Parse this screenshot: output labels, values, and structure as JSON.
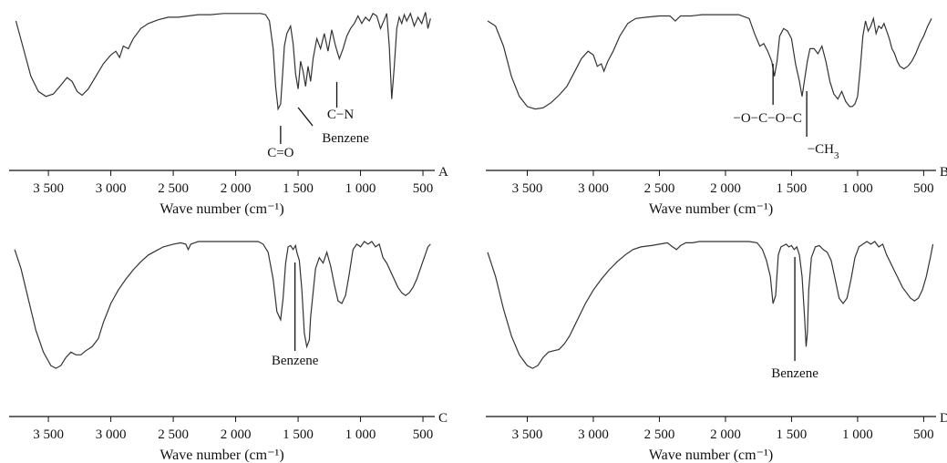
{
  "chart_data": [
    {
      "type": "line",
      "panel_label": "A",
      "xlabel": "Wave number (cm⁻¹)",
      "ylabel": "",
      "title": "",
      "xlim": [
        3800,
        420
      ],
      "x_reversed": true,
      "xticks": [
        3500,
        3000,
        2500,
        2000,
        1500,
        1000,
        500
      ],
      "xtick_labels": [
        "3 500",
        "3 000",
        "2 500",
        "2 000",
        "1 500",
        "1 000",
        "500"
      ],
      "ylim": [
        0,
        1
      ],
      "grid": false,
      "series": [
        {
          "x": [
            3760,
            3700,
            3640,
            3580,
            3520,
            3460,
            3400,
            3350,
            3310,
            3270,
            3230,
            3180,
            3120,
            3060,
            3000,
            2960,
            2930,
            2900,
            2860,
            2820,
            2760,
            2700,
            2620,
            2540,
            2460,
            2380,
            2300,
            2200,
            2100,
            2000,
            1900,
            1800,
            1760,
            1730,
            1700,
            1680,
            1660,
            1640,
            1625,
            1610,
            1590,
            1560,
            1540,
            1520,
            1500,
            1480,
            1460,
            1440,
            1420,
            1400,
            1380,
            1350,
            1320,
            1290,
            1260,
            1230,
            1200,
            1170,
            1140,
            1110,
            1080,
            1050,
            1020,
            990,
            960,
            930,
            900,
            870,
            840,
            810,
            790,
            770,
            750,
            730,
            710,
            690,
            670,
            650,
            630,
            600,
            570,
            540,
            510,
            480,
            460,
            440
          ],
          "y": [
            0.92,
            0.7,
            0.48,
            0.36,
            0.32,
            0.34,
            0.41,
            0.47,
            0.44,
            0.36,
            0.33,
            0.38,
            0.48,
            0.58,
            0.65,
            0.68,
            0.63,
            0.72,
            0.7,
            0.78,
            0.86,
            0.9,
            0.93,
            0.95,
            0.95,
            0.96,
            0.97,
            0.97,
            0.98,
            0.98,
            0.98,
            0.98,
            0.97,
            0.92,
            0.7,
            0.4,
            0.22,
            0.26,
            0.48,
            0.72,
            0.82,
            0.88,
            0.74,
            0.5,
            0.38,
            0.6,
            0.52,
            0.4,
            0.56,
            0.44,
            0.62,
            0.78,
            0.7,
            0.82,
            0.68,
            0.85,
            0.72,
            0.62,
            0.7,
            0.8,
            0.86,
            0.9,
            0.96,
            0.9,
            0.95,
            0.92,
            0.98,
            0.96,
            0.86,
            0.93,
            0.98,
            0.72,
            0.3,
            0.55,
            0.86,
            0.95,
            0.9,
            0.97,
            0.92,
            0.98,
            0.88,
            0.95,
            0.9,
            0.99,
            0.86,
            0.94
          ]
        }
      ],
      "annotations": [
        {
          "text": "C=O",
          "x": 1640
        },
        {
          "text": "Benzene",
          "x": 1500
        },
        {
          "text": "C−N",
          "x": 1190
        }
      ]
    },
    {
      "type": "line",
      "panel_label": "B",
      "xlabel": "Wave number (cm⁻¹)",
      "ylabel": "",
      "title": "",
      "xlim": [
        3800,
        420
      ],
      "x_reversed": true,
      "xticks": [
        3500,
        3000,
        2500,
        2000,
        1500,
        1000,
        500
      ],
      "xtick_labels": [
        "3 500",
        "3 000",
        "2 500",
        "2 000",
        "1 500",
        "1 000",
        "500"
      ],
      "ylim": [
        0,
        1
      ],
      "grid": false,
      "series": [
        {
          "x": [
            3800,
            3740,
            3680,
            3620,
            3560,
            3500,
            3440,
            3380,
            3320,
            3260,
            3200,
            3140,
            3090,
            3040,
            3000,
            2970,
            2940,
            2920,
            2890,
            2850,
            2800,
            2740,
            2680,
            2600,
            2500,
            2420,
            2380,
            2340,
            2260,
            2180,
            2100,
            2000,
            1900,
            1820,
            1780,
            1740,
            1710,
            1680,
            1650,
            1630,
            1610,
            1590,
            1560,
            1530,
            1500,
            1470,
            1440,
            1420,
            1400,
            1380,
            1360,
            1330,
            1300,
            1270,
            1240,
            1210,
            1180,
            1150,
            1120,
            1090,
            1060,
            1040,
            1020,
            1000,
            980,
            960,
            940,
            920,
            900,
            880,
            860,
            840,
            820,
            800,
            780,
            760,
            740,
            720,
            700,
            680,
            650,
            620,
            590,
            560,
            530,
            500,
            470,
            440
          ],
          "y": [
            0.92,
            0.88,
            0.72,
            0.48,
            0.32,
            0.24,
            0.22,
            0.23,
            0.27,
            0.33,
            0.4,
            0.52,
            0.62,
            0.68,
            0.65,
            0.56,
            0.58,
            0.52,
            0.6,
            0.68,
            0.8,
            0.9,
            0.94,
            0.95,
            0.96,
            0.96,
            0.92,
            0.96,
            0.96,
            0.97,
            0.97,
            0.97,
            0.97,
            0.94,
            0.82,
            0.72,
            0.74,
            0.68,
            0.6,
            0.48,
            0.6,
            0.8,
            0.86,
            0.84,
            0.78,
            0.58,
            0.44,
            0.32,
            0.46,
            0.6,
            0.7,
            0.7,
            0.66,
            0.72,
            0.6,
            0.44,
            0.34,
            0.3,
            0.36,
            0.28,
            0.24,
            0.24,
            0.26,
            0.32,
            0.54,
            0.8,
            0.92,
            0.84,
            0.88,
            0.94,
            0.82,
            0.88,
            0.86,
            0.9,
            0.84,
            0.78,
            0.7,
            0.66,
            0.6,
            0.56,
            0.54,
            0.56,
            0.6,
            0.66,
            0.74,
            0.8,
            0.88,
            0.94
          ]
        }
      ],
      "annotations": [
        {
          "text": "−O−C−O−C",
          "x": 1640
        },
        {
          "text": "−CH",
          "subscript": "3",
          "x": 1385
        }
      ]
    },
    {
      "type": "line",
      "panel_label": "C",
      "xlabel": "Wave number (cm⁻¹)",
      "ylabel": "",
      "title": "",
      "xlim": [
        3800,
        420
      ],
      "x_reversed": true,
      "xticks": [
        3500,
        3000,
        2500,
        2000,
        1500,
        1000,
        500
      ],
      "xtick_labels": [
        "3 500",
        "3 000",
        "2 500",
        "2 000",
        "1 500",
        "1 000",
        "500"
      ],
      "ylim": [
        0,
        1
      ],
      "grid": false,
      "series": [
        {
          "x": [
            3770,
            3720,
            3660,
            3600,
            3540,
            3480,
            3440,
            3400,
            3360,
            3320,
            3280,
            3240,
            3200,
            3150,
            3100,
            3060,
            3000,
            2940,
            2880,
            2820,
            2760,
            2700,
            2640,
            2580,
            2500,
            2440,
            2400,
            2380,
            2360,
            2330,
            2300,
            2250,
            2200,
            2100,
            2000,
            1900,
            1820,
            1780,
            1740,
            1700,
            1670,
            1640,
            1620,
            1600,
            1580,
            1560,
            1540,
            1520,
            1510,
            1490,
            1470,
            1450,
            1430,
            1410,
            1400,
            1380,
            1360,
            1330,
            1300,
            1270,
            1240,
            1210,
            1180,
            1150,
            1120,
            1090,
            1060,
            1030,
            1000,
            970,
            940,
            910,
            880,
            850,
            820,
            790,
            760,
            730,
            700,
            670,
            640,
            610,
            580,
            550,
            520,
            490,
            460,
            440
          ],
          "y": [
            0.92,
            0.78,
            0.55,
            0.32,
            0.16,
            0.06,
            0.04,
            0.06,
            0.12,
            0.16,
            0.14,
            0.14,
            0.17,
            0.2,
            0.26,
            0.38,
            0.52,
            0.62,
            0.7,
            0.77,
            0.83,
            0.88,
            0.91,
            0.94,
            0.96,
            0.97,
            0.96,
            0.92,
            0.96,
            0.97,
            0.98,
            0.98,
            0.98,
            0.98,
            0.98,
            0.98,
            0.98,
            0.96,
            0.9,
            0.7,
            0.46,
            0.4,
            0.56,
            0.82,
            0.94,
            0.95,
            0.92,
            0.95,
            0.9,
            0.84,
            0.62,
            0.3,
            0.2,
            0.25,
            0.42,
            0.6,
            0.78,
            0.86,
            0.82,
            0.9,
            0.8,
            0.66,
            0.54,
            0.52,
            0.58,
            0.74,
            0.92,
            0.96,
            0.94,
            0.98,
            0.96,
            0.98,
            0.94,
            0.96,
            0.86,
            0.82,
            0.76,
            0.7,
            0.64,
            0.6,
            0.58,
            0.6,
            0.64,
            0.7,
            0.78,
            0.86,
            0.94,
            0.96
          ]
        }
      ],
      "annotations": [
        {
          "text": "Benzene",
          "x": 1525
        }
      ]
    },
    {
      "type": "line",
      "panel_label": "D",
      "xlabel": "Wave number (cm⁻¹)",
      "ylabel": "",
      "title": "",
      "xlim": [
        3800,
        420
      ],
      "x_reversed": true,
      "xticks": [
        3500,
        3000,
        2500,
        2000,
        1500,
        1000,
        500
      ],
      "xtick_labels": [
        "3 500",
        "3 000",
        "2 500",
        "2 000",
        "1 500",
        "1 000",
        "500"
      ],
      "ylim": [
        0,
        1
      ],
      "grid": false,
      "series": [
        {
          "x": [
            3800,
            3740,
            3680,
            3620,
            3560,
            3500,
            3460,
            3420,
            3380,
            3340,
            3300,
            3260,
            3220,
            3180,
            3140,
            3100,
            3060,
            3000,
            2940,
            2880,
            2820,
            2760,
            2700,
            2640,
            2560,
            2500,
            2440,
            2400,
            2370,
            2340,
            2300,
            2250,
            2200,
            2100,
            2000,
            1900,
            1820,
            1760,
            1720,
            1690,
            1660,
            1640,
            1620,
            1600,
            1580,
            1560,
            1540,
            1520,
            1500,
            1480,
            1460,
            1440,
            1420,
            1400,
            1390,
            1380,
            1370,
            1350,
            1320,
            1290,
            1260,
            1230,
            1200,
            1170,
            1140,
            1110,
            1080,
            1050,
            1020,
            990,
            960,
            930,
            900,
            870,
            840,
            810,
            780,
            750,
            720,
            690,
            660,
            630,
            600,
            570,
            540,
            510,
            480,
            450,
            430
          ],
          "y": [
            0.9,
            0.72,
            0.48,
            0.28,
            0.14,
            0.06,
            0.04,
            0.06,
            0.12,
            0.16,
            0.17,
            0.18,
            0.22,
            0.28,
            0.36,
            0.44,
            0.52,
            0.62,
            0.7,
            0.77,
            0.83,
            0.88,
            0.92,
            0.94,
            0.95,
            0.96,
            0.97,
            0.94,
            0.92,
            0.95,
            0.97,
            0.97,
            0.98,
            0.98,
            0.98,
            0.98,
            0.98,
            0.97,
            0.92,
            0.84,
            0.72,
            0.52,
            0.58,
            0.88,
            0.94,
            0.95,
            0.96,
            0.94,
            0.95,
            0.92,
            0.94,
            0.88,
            0.72,
            0.4,
            0.2,
            0.3,
            0.62,
            0.86,
            0.94,
            0.95,
            0.92,
            0.9,
            0.84,
            0.7,
            0.56,
            0.52,
            0.56,
            0.7,
            0.86,
            0.94,
            0.96,
            0.98,
            0.96,
            0.98,
            0.94,
            0.96,
            0.88,
            0.82,
            0.76,
            0.7,
            0.64,
            0.6,
            0.56,
            0.54,
            0.56,
            0.62,
            0.72,
            0.86,
            0.96
          ]
        }
      ],
      "annotations": [
        {
          "text": "Benzene",
          "x": 1475
        }
      ]
    }
  ]
}
